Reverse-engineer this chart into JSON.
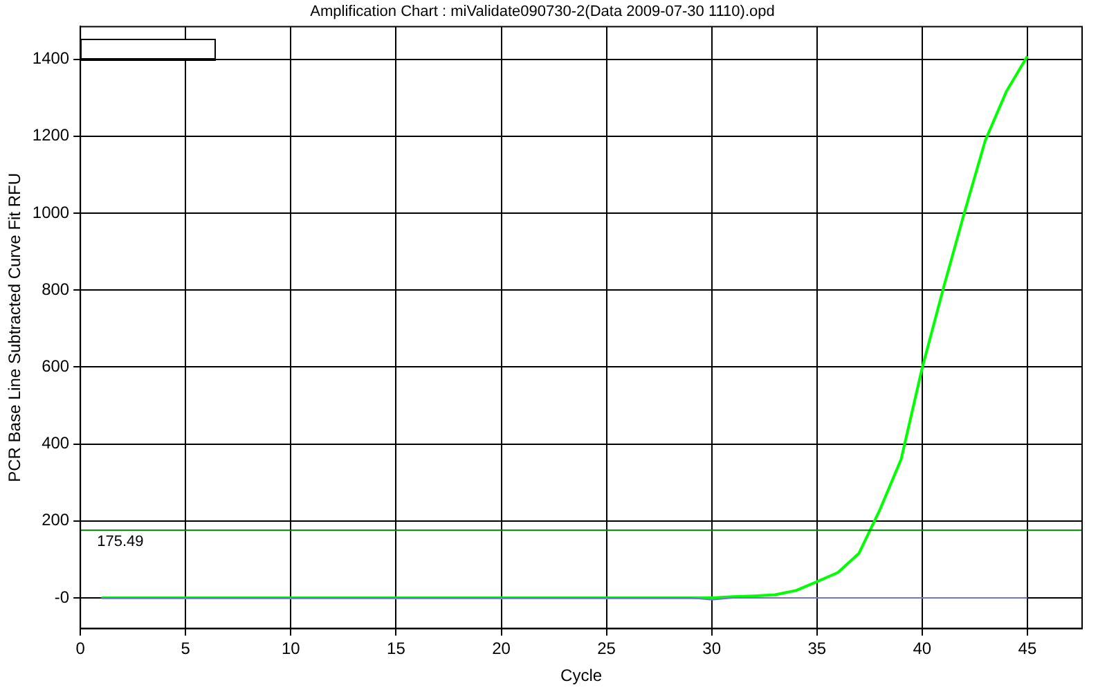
{
  "chart_data": {
    "type": "line",
    "title": "Amplification Chart : miValidate090730-2(Data 2009-07-30 1110).opd",
    "xlabel": "Cycle",
    "ylabel": "PCR Base Line Subtracted Curve Fit RFU",
    "x": [
      1,
      2,
      3,
      4,
      5,
      6,
      7,
      8,
      9,
      10,
      11,
      12,
      13,
      14,
      15,
      16,
      17,
      18,
      19,
      20,
      21,
      22,
      23,
      24,
      25,
      26,
      27,
      28,
      29,
      30,
      31,
      32,
      33,
      34,
      35,
      36,
      37,
      38,
      39,
      40,
      41,
      42,
      43,
      44,
      45
    ],
    "series": [
      {
        "color": "#00ff00",
        "values": [
          0,
          0,
          0,
          0,
          0,
          0,
          0,
          0,
          0,
          0,
          0,
          0,
          0,
          0,
          0,
          0,
          0,
          0,
          0,
          0,
          0,
          0,
          0,
          0,
          0,
          0,
          0,
          0,
          0,
          0,
          3,
          5,
          8,
          19,
          42,
          66,
          116,
          230,
          360,
          597,
          803,
          1000,
          1189,
          1316,
          1408
        ]
      },
      {
        "color": "#7070e0",
        "values": [
          0,
          0,
          0,
          0,
          0,
          0,
          0,
          0,
          0,
          0,
          0,
          0,
          0,
          0,
          0,
          0,
          0,
          0,
          0,
          0,
          0,
          0,
          0,
          0,
          0,
          0,
          0,
          0,
          0,
          -5,
          0,
          0,
          0,
          0,
          0,
          0,
          0,
          0,
          0,
          0,
          0,
          0,
          0,
          0,
          0
        ]
      }
    ],
    "xlim": [
      0,
      47.6
    ],
    "xticks": [
      0,
      5,
      10,
      15,
      20,
      25,
      30,
      35,
      40,
      45
    ],
    "ylim": [
      -80,
      1485
    ],
    "yticks": [
      {
        "value": 0,
        "label": "-0"
      },
      200,
      400,
      600,
      800,
      1000,
      1200,
      1400
    ],
    "ref_lines": [
      {
        "axis": "y",
        "value": 175.49,
        "label": "175.49",
        "color": "#008000"
      }
    ],
    "grid": true,
    "legend": false,
    "marker": "none",
    "line_style": "solid"
  }
}
